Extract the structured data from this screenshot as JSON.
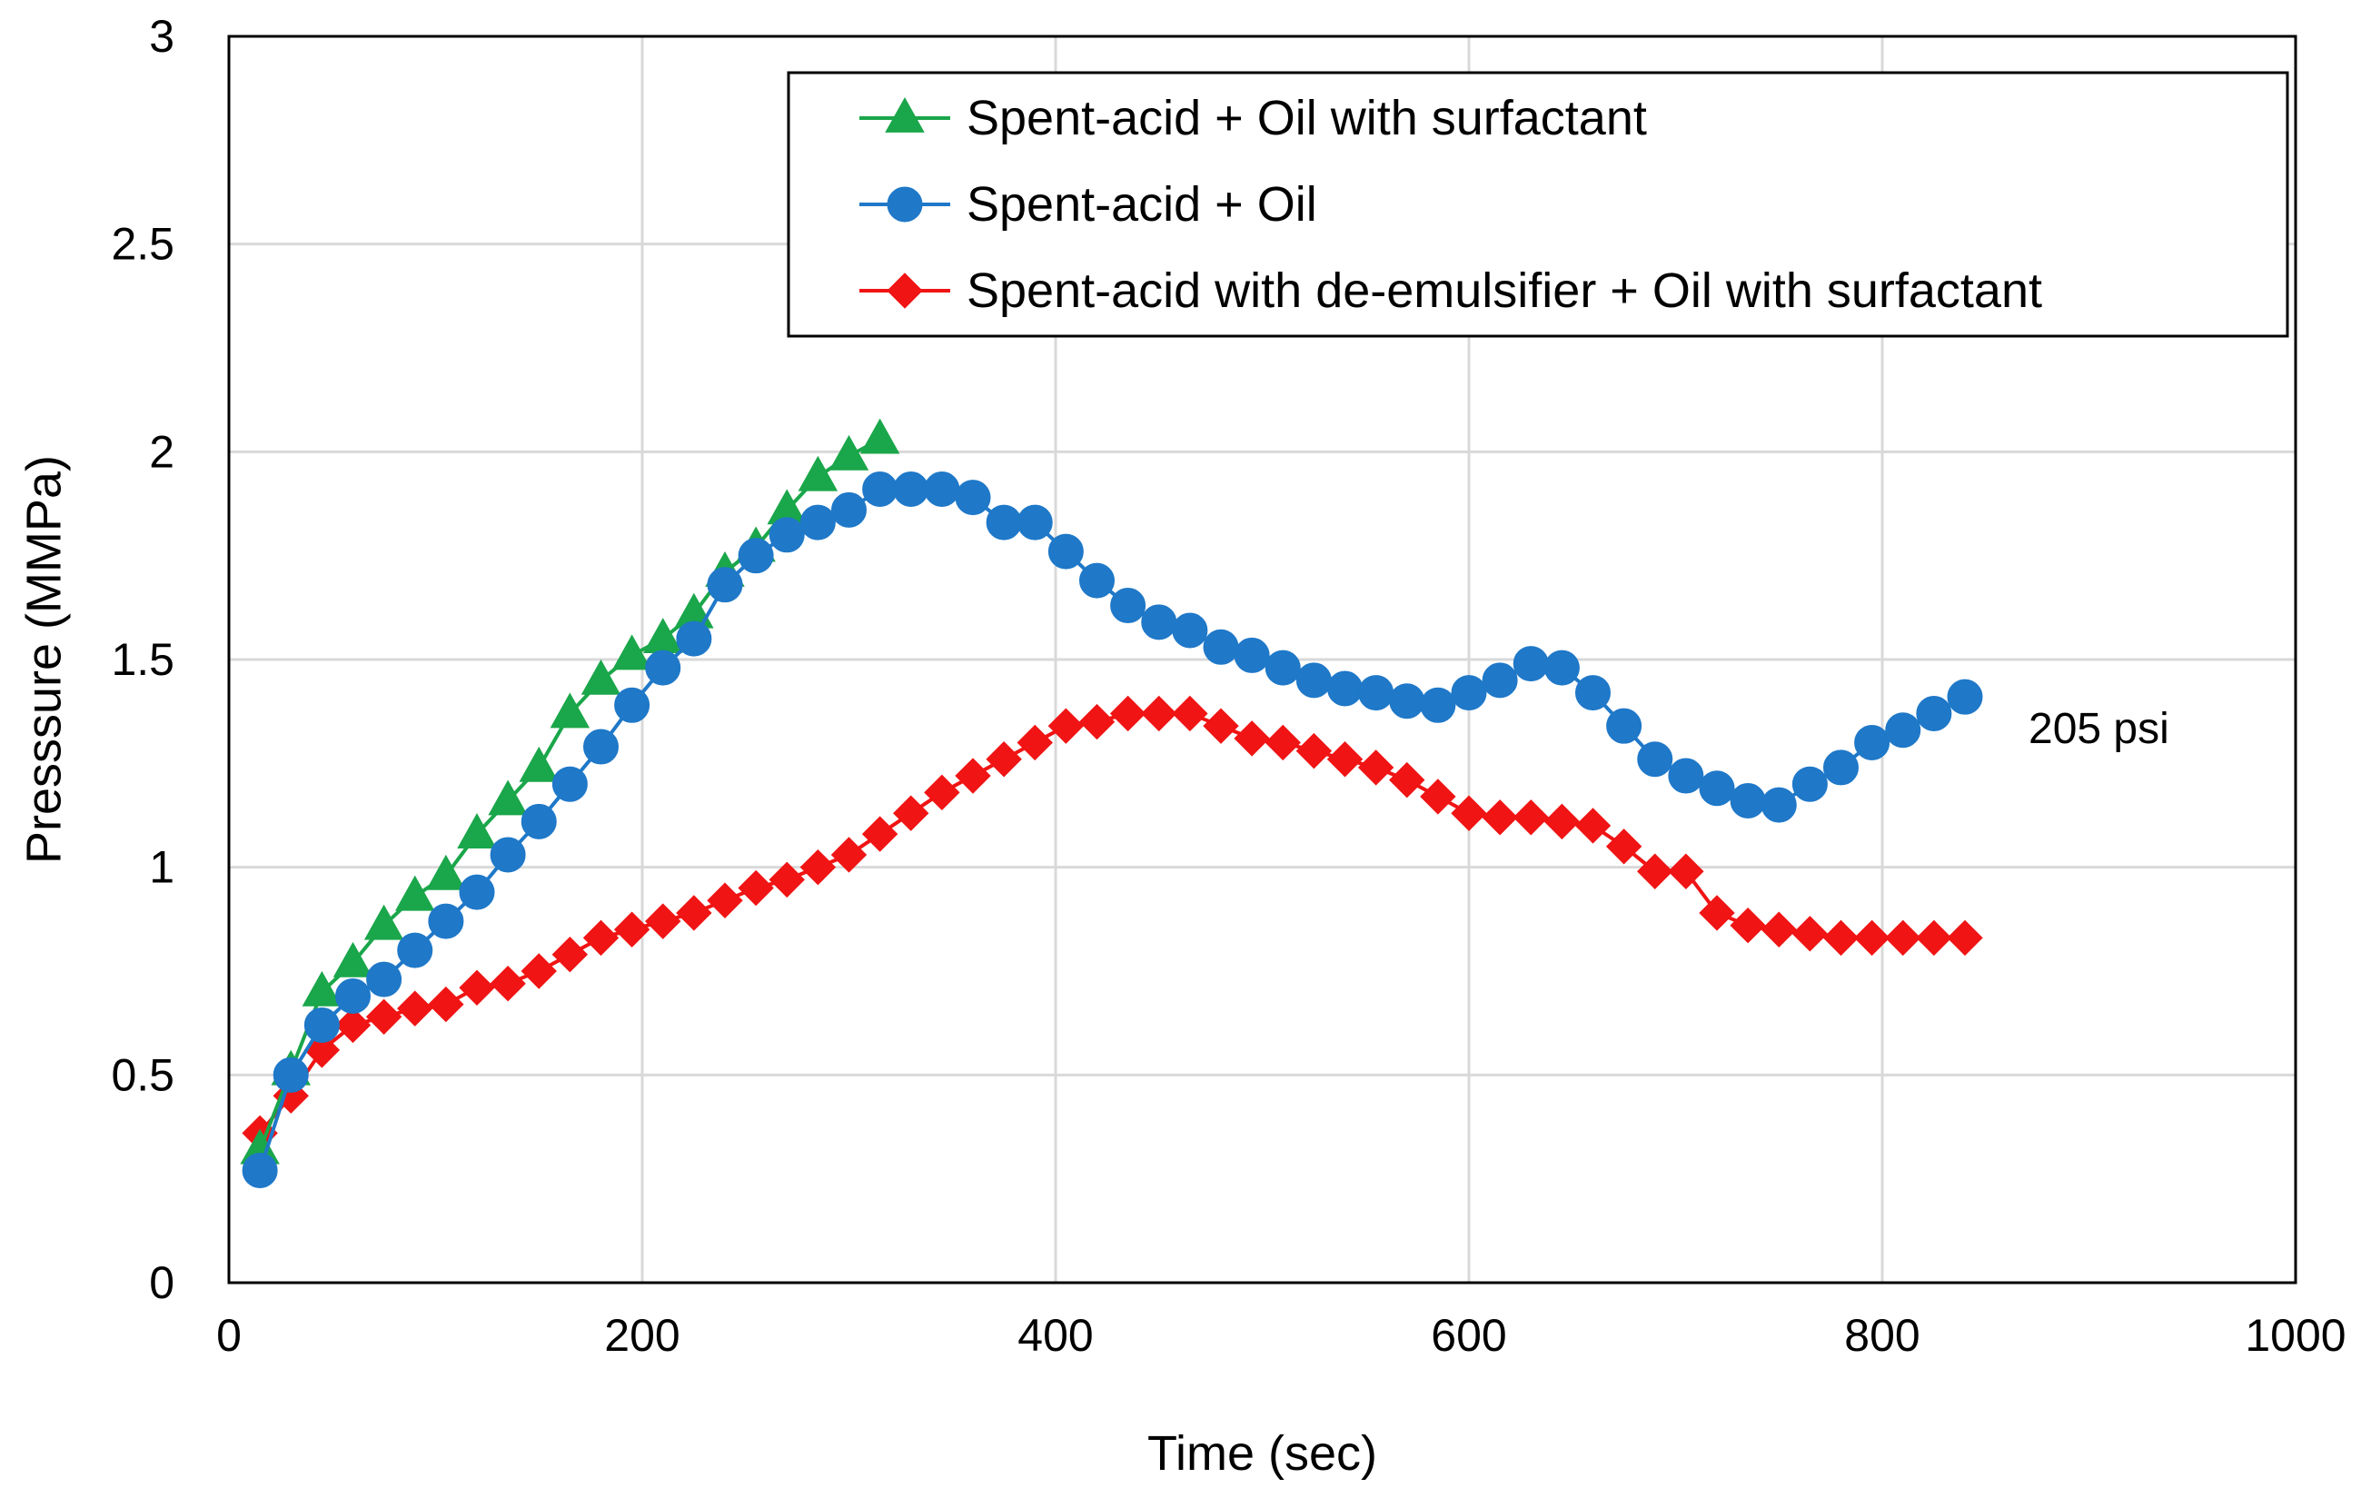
{
  "chart_data": {
    "type": "line",
    "title": "",
    "xlabel": "Time (sec)",
    "ylabel": "Presssure (MMPa)",
    "xlim": [
      0,
      1000
    ],
    "ylim": [
      0,
      3
    ],
    "xticks": [
      0,
      200,
      400,
      600,
      800,
      1000
    ],
    "xtick_labels": [
      "0",
      "200",
      "400",
      "600",
      "800",
      "1000"
    ],
    "yticks": [
      0,
      0.5,
      1,
      1.5,
      2,
      2.5,
      3
    ],
    "ytick_labels": [
      "0",
      "0.5",
      "1",
      "1.5",
      "2",
      "2.5",
      "3"
    ],
    "grid": true,
    "legend_position": "top-right",
    "annotation": "205 psi",
    "series": [
      {
        "name": "Spent-acid + Oil with surfactant",
        "color": "#1aa64a",
        "marker": "triangle",
        "x": [
          15,
          30,
          45,
          60,
          75,
          90,
          105,
          120,
          135,
          150,
          165,
          180,
          195,
          210,
          225,
          240,
          255,
          270,
          285,
          300,
          315
        ],
        "y": [
          0.32,
          0.51,
          0.7,
          0.77,
          0.86,
          0.93,
          0.98,
          1.08,
          1.16,
          1.24,
          1.37,
          1.45,
          1.51,
          1.55,
          1.61,
          1.71,
          1.77,
          1.86,
          1.94,
          1.99,
          2.03
        ]
      },
      {
        "name": "Spent-acid + Oil",
        "color": "#1f78c8",
        "marker": "circle",
        "x": [
          15,
          30,
          45,
          60,
          75,
          90,
          105,
          120,
          135,
          150,
          165,
          180,
          195,
          210,
          225,
          240,
          255,
          270,
          285,
          300,
          315,
          330,
          345,
          360,
          375,
          390,
          405,
          420,
          435,
          450,
          465,
          480,
          495,
          510,
          525,
          540,
          555,
          570,
          585,
          600,
          615,
          630,
          645,
          660,
          675,
          690,
          705,
          720,
          735,
          750,
          765,
          780,
          795,
          810,
          825,
          840
        ],
        "y": [
          0.27,
          0.5,
          0.62,
          0.69,
          0.73,
          0.8,
          0.87,
          0.94,
          1.03,
          1.11,
          1.2,
          1.29,
          1.39,
          1.48,
          1.55,
          1.68,
          1.75,
          1.8,
          1.83,
          1.86,
          1.91,
          1.91,
          1.91,
          1.89,
          1.83,
          1.83,
          1.76,
          1.69,
          1.63,
          1.59,
          1.57,
          1.53,
          1.51,
          1.48,
          1.45,
          1.43,
          1.42,
          1.4,
          1.39,
          1.42,
          1.45,
          1.49,
          1.48,
          1.42,
          1.34,
          1.26,
          1.22,
          1.19,
          1.16,
          1.15,
          1.2,
          1.24,
          1.3,
          1.33,
          1.37,
          1.41
        ]
      },
      {
        "name": "Spent-acid with de-emulsifier + Oil with surfactant",
        "color": "#f01414",
        "marker": "diamond",
        "x": [
          15,
          30,
          45,
          60,
          75,
          90,
          105,
          120,
          135,
          150,
          165,
          180,
          195,
          210,
          225,
          240,
          255,
          270,
          285,
          300,
          315,
          330,
          345,
          360,
          375,
          390,
          405,
          420,
          435,
          450,
          465,
          480,
          495,
          510,
          525,
          540,
          555,
          570,
          585,
          600,
          615,
          630,
          645,
          660,
          675,
          690,
          705,
          720,
          735,
          750,
          765,
          780,
          795,
          810,
          825,
          840
        ],
        "y": [
          0.36,
          0.45,
          0.56,
          0.62,
          0.64,
          0.66,
          0.67,
          0.71,
          0.72,
          0.75,
          0.79,
          0.83,
          0.85,
          0.87,
          0.89,
          0.92,
          0.95,
          0.97,
          1.0,
          1.03,
          1.08,
          1.13,
          1.18,
          1.22,
          1.26,
          1.3,
          1.34,
          1.35,
          1.37,
          1.37,
          1.37,
          1.34,
          1.31,
          1.3,
          1.28,
          1.26,
          1.24,
          1.21,
          1.17,
          1.13,
          1.12,
          1.12,
          1.11,
          1.1,
          1.05,
          0.99,
          0.99,
          0.89,
          0.86,
          0.85,
          0.84,
          0.83,
          0.83,
          0.83,
          0.83,
          0.83
        ]
      }
    ]
  }
}
